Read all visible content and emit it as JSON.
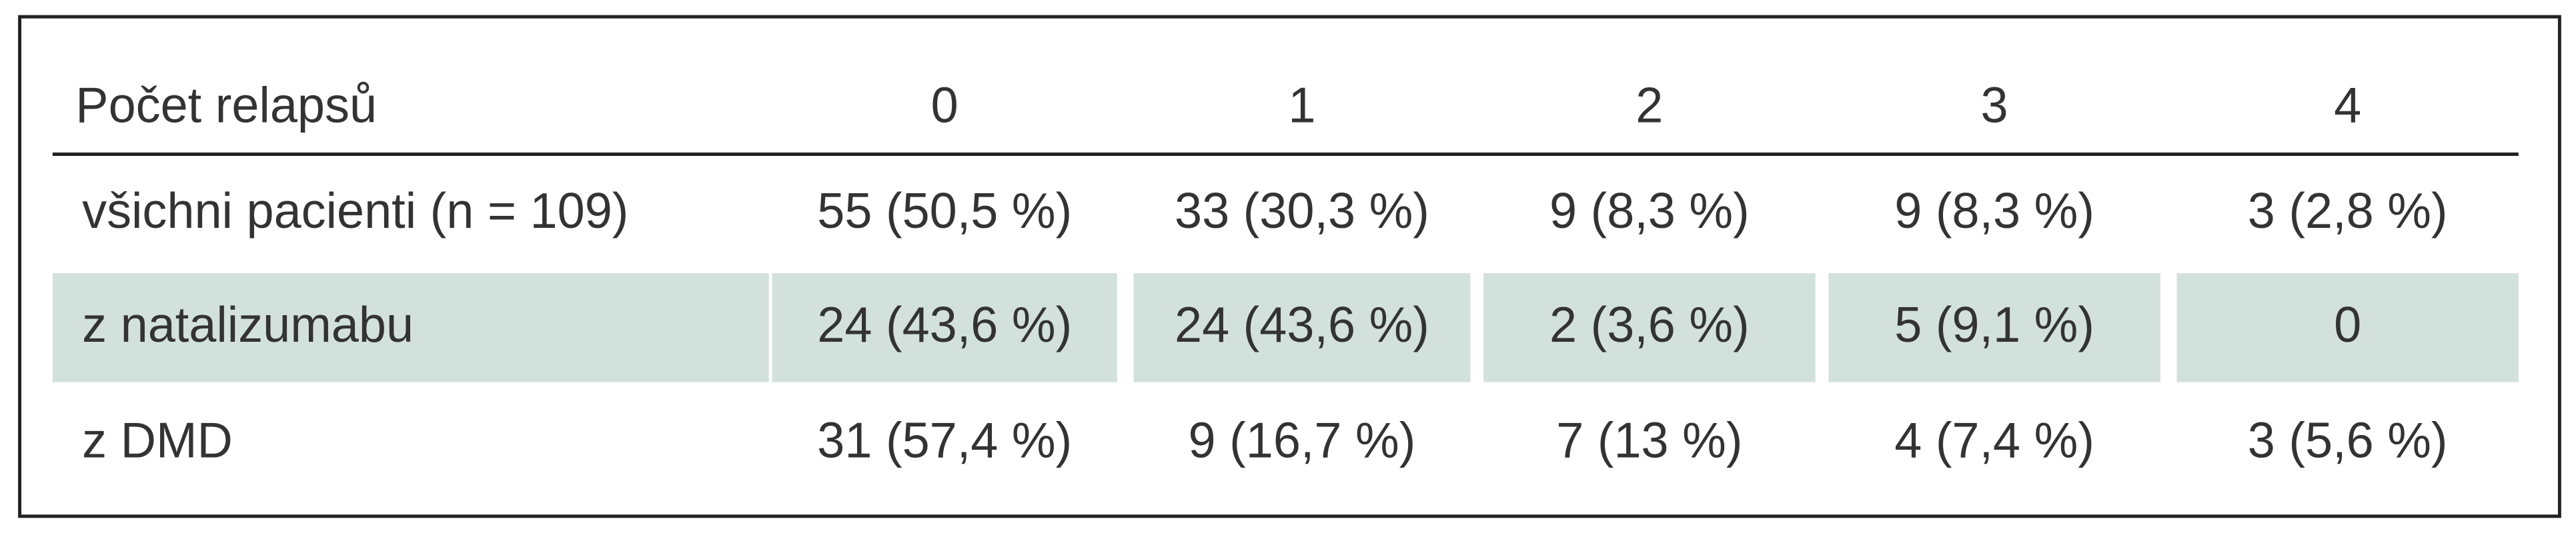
{
  "table": {
    "header": [
      "Počet relapsů",
      "0",
      "1",
      "2",
      "3",
      "4"
    ],
    "rows": [
      [
        "všichni pacienti (n = 109)",
        "55 (50,5 %)",
        "33 (30,3 %)",
        "9 (8,3 %)",
        "9 (8,3 %)",
        "3 (2,8 %)"
      ],
      [
        "z natalizumabu",
        "24 (43,6 %)",
        "24 (43,6 %)",
        "2 (3,6 %)",
        "5 (9,1 %)",
        "0"
      ],
      [
        "z DMD",
        "31 (57,4 %)",
        "9 (16,7 %)",
        "7 (13 %)",
        "4 (7,4 %)",
        "3 (5,6 %)"
      ]
    ]
  }
}
